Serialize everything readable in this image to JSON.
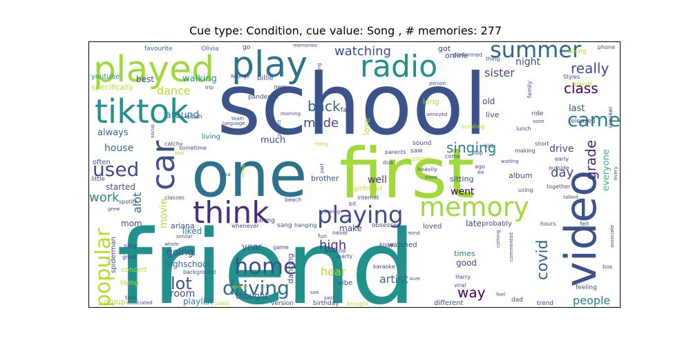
{
  "figure": {
    "title": "Cue type: Condition, cue value: Song , # memories: 277"
  },
  "wordcloud": {
    "palette": [
      "#440154",
      "#482878",
      "#3e4a89",
      "#31688e",
      "#26828e",
      "#1f9e89",
      "#35b779",
      "#6ece58",
      "#b5de2b",
      "#d7e219"
    ],
    "words": [
      {
        "text": "friend",
        "color": "#21918c"
      },
      {
        "text": "school",
        "color": "#3b528b"
      },
      {
        "text": "one",
        "color": "#2c728e"
      },
      {
        "text": "first",
        "color": "#a0da39"
      },
      {
        "text": "video",
        "color": "#3b528b"
      },
      {
        "text": "played",
        "color": "#a0da39"
      },
      {
        "text": "play",
        "color": "#2c728e"
      },
      {
        "text": "tiktok",
        "color": "#21918c"
      },
      {
        "text": "radio",
        "color": "#21918c"
      },
      {
        "text": "think",
        "color": "#472d7b"
      },
      {
        "text": "car",
        "color": "#3b528b"
      },
      {
        "text": "memory",
        "color": "#a0da39"
      },
      {
        "text": "playing",
        "color": "#3e4a89"
      },
      {
        "text": "summer",
        "color": "#31688e"
      },
      {
        "text": "popular",
        "color": "#b5de2b"
      },
      {
        "text": "home",
        "color": "#3b528b"
      },
      {
        "text": "driving",
        "color": "#31688e"
      },
      {
        "text": "came",
        "color": "#26828e"
      },
      {
        "text": "used",
        "color": "#3e4a89"
      },
      {
        "text": "lot",
        "color": "#3b528b"
      },
      {
        "text": "really",
        "color": "#3e4a89"
      },
      {
        "text": "class",
        "color": "#440154"
      },
      {
        "text": "watching",
        "color": "#3e4a89"
      },
      {
        "text": "back",
        "color": "#31688e"
      },
      {
        "text": "made",
        "color": "#3e4a89"
      },
      {
        "text": "singing",
        "color": "#26828e"
      },
      {
        "text": "covid",
        "color": "#31688e"
      },
      {
        "text": "grade",
        "color": "#482878"
      },
      {
        "text": "day",
        "color": "#3e4a89"
      },
      {
        "text": "work",
        "color": "#26828e"
      },
      {
        "text": "way",
        "color": "#440154"
      },
      {
        "text": "high",
        "color": "#472d7b"
      },
      {
        "text": "artist",
        "color": "#31688e"
      },
      {
        "text": "people",
        "color": "#26828e"
      },
      {
        "text": "dance",
        "color": "#b5de2b"
      },
      {
        "text": "house",
        "color": "#31688e"
      },
      {
        "text": "going",
        "color": "#3e4a89"
      },
      {
        "text": "room",
        "color": "#3b528b"
      },
      {
        "text": "alot",
        "color": "#31688e"
      },
      {
        "text": "movie",
        "color": "#b5de2b"
      },
      {
        "text": "hear",
        "color": "#b5de2b"
      },
      {
        "text": "went",
        "color": "#440154"
      },
      {
        "text": "sister",
        "color": "#3e4a89"
      },
      {
        "text": "night",
        "color": "#3e4a89"
      },
      {
        "text": "always",
        "color": "#31688e"
      },
      {
        "text": "around",
        "color": "#26828e"
      },
      {
        "text": "much",
        "color": "#3e4a89"
      },
      {
        "text": "well",
        "color": "#472d7b"
      },
      {
        "text": "drive",
        "color": "#3e4a89"
      },
      {
        "text": "everyone",
        "color": "#35b779"
      },
      {
        "text": "last",
        "color": "#3b528b"
      },
      {
        "text": "year",
        "color": "#3b528b"
      },
      {
        "text": "thought",
        "color": "#3e4a89"
      },
      {
        "text": "playlist",
        "color": "#26828e"
      },
      {
        "text": "highschool",
        "color": "#31688e"
      },
      {
        "text": "make",
        "color": "#3e4a89"
      },
      {
        "text": "good",
        "color": "#3e4a89"
      },
      {
        "text": "old",
        "color": "#3e4a89"
      },
      {
        "text": "best",
        "color": "#3e4a89"
      },
      {
        "text": "walking",
        "color": "#21918c"
      },
      {
        "text": "mom",
        "color": "#3e4a89"
      },
      {
        "text": "liked",
        "color": "#26828e"
      },
      {
        "text": "late",
        "color": "#3e4a89"
      },
      {
        "text": "started",
        "color": "#3e4a89"
      },
      {
        "text": "album",
        "color": "#3e4a89"
      },
      {
        "text": "online",
        "color": "#3e4a89"
      },
      {
        "text": "got",
        "color": "#3e4a89"
      },
      {
        "text": "live",
        "color": "#3e4a89"
      },
      {
        "text": "times",
        "color": "#26828e"
      },
      {
        "text": "ariana",
        "color": "#3e4a89"
      },
      {
        "text": "dancing",
        "color": "#3e4a89"
      },
      {
        "text": "brother",
        "color": "#3e4a89"
      },
      {
        "text": "sitting",
        "color": "#3e4a89"
      },
      {
        "text": "specifically",
        "color": "#b5de2b"
      },
      {
        "text": "favourite",
        "color": "#31688e"
      },
      {
        "text": "youtube",
        "color": "#21918c"
      },
      {
        "text": "Olivia",
        "color": "#31688e"
      },
      {
        "text": "billie",
        "color": "#3e4a89"
      },
      {
        "text": "new",
        "color": "#3e4a89"
      },
      {
        "text": "eilish",
        "color": "#3e4a89"
      },
      {
        "text": "living",
        "color": "#26828e"
      },
      {
        "text": "love",
        "color": "#b5de2b"
      },
      {
        "text": "fan",
        "color": "#3e4a89"
      },
      {
        "text": "long",
        "color": "#b5de2b"
      },
      {
        "text": "released",
        "color": "#3e4a89"
      },
      {
        "text": "spiderman",
        "color": "#3e4a89"
      },
      {
        "text": "group",
        "color": "#b5de2b"
      },
      {
        "text": "liking",
        "color": "#b5de2b"
      },
      {
        "text": "concert",
        "color": "#b5de2b"
      },
      {
        "text": "little",
        "color": "#3e4a89"
      },
      {
        "text": "often",
        "color": "#3e4a89"
      },
      {
        "text": "watched",
        "color": "#3e4a89"
      },
      {
        "text": "obsessed",
        "color": "#3e4a89"
      },
      {
        "text": "loved",
        "color": "#3e4a89"
      },
      {
        "text": "probably",
        "color": "#3e4a89"
      },
      {
        "text": "hours",
        "color": "#3e4a89"
      },
      {
        "text": "together",
        "color": "#3e4a89"
      },
      {
        "text": "feeling",
        "color": "#3e4a89"
      },
      {
        "text": "different",
        "color": "#3e4a89"
      },
      {
        "text": "dad",
        "color": "#3e4a89"
      },
      {
        "text": "trend",
        "color": "#3e4a89"
      },
      {
        "text": "version",
        "color": "#3e4a89"
      },
      {
        "text": "birthday",
        "color": "#3e4a89"
      },
      {
        "text": "sing",
        "color": "#3e4a89"
      },
      {
        "text": "great",
        "color": "#3e4a89"
      },
      {
        "text": "told",
        "color": "#3e4a89"
      },
      {
        "text": "game",
        "color": "#3e4a89"
      },
      {
        "text": "vibe",
        "color": "#3e4a89"
      },
      {
        "text": "Harry",
        "color": "#3e4a89"
      },
      {
        "text": "viral",
        "color": "#3e4a89"
      },
      {
        "text": "party",
        "color": "#3e4a89"
      },
      {
        "text": "weeknd",
        "color": "#3e4a89"
      },
      {
        "text": "karaoke",
        "color": "#3e4a89"
      },
      {
        "text": "know",
        "color": "#3e4a89"
      },
      {
        "text": "fun",
        "color": "#3e4a89"
      },
      {
        "text": "never",
        "color": "#3e4a89"
      },
      {
        "text": "sang",
        "color": "#3e4a89"
      },
      {
        "text": "hanging",
        "color": "#3e4a89"
      },
      {
        "text": "whenever",
        "color": "#3e4a89"
      },
      {
        "text": "beach",
        "color": "#3e4a89"
      },
      {
        "text": "pandemic",
        "color": "#3e4a89"
      },
      {
        "text": "catchy",
        "color": "#3e4a89"
      },
      {
        "text": "sometime",
        "color": "#3e4a89"
      },
      {
        "text": "trip",
        "color": "#3e4a89"
      },
      {
        "text": "Rodrigo",
        "color": "#3e4a89"
      },
      {
        "text": "go",
        "color": "#3e4a89"
      },
      {
        "text": "memories",
        "color": "#3e4a89"
      },
      {
        "text": "performed",
        "color": "#3e4a89"
      },
      {
        "text": "thing",
        "color": "#3e4a89"
      },
      {
        "text": "talking",
        "color": "#b5de2b"
      },
      {
        "text": "phone",
        "color": "#3e4a89"
      },
      {
        "text": "Styles",
        "color": "#3e4a89"
      },
      {
        "text": "grande",
        "color": "#b5de2b"
      },
      {
        "text": "speaker",
        "color": "#3e4a89"
      },
      {
        "text": "family",
        "color": "#3e4a89"
      },
      {
        "text": "ride",
        "color": "#3e4a89"
      },
      {
        "text": "lunch",
        "color": "#3e4a89"
      },
      {
        "text": "soon",
        "color": "#3e4a89"
      },
      {
        "text": "short",
        "color": "#3e4a89"
      },
      {
        "text": "making",
        "color": "#3e4a89"
      },
      {
        "text": "early",
        "color": "#3e4a89"
      },
      {
        "text": "outside",
        "color": "#3e4a89"
      },
      {
        "text": "every",
        "color": "#3e4a89"
      },
      {
        "text": "top",
        "color": "#3e4a89"
      },
      {
        "text": "kid",
        "color": "#3e4a89"
      },
      {
        "text": "waiting",
        "color": "#3e4a89"
      },
      {
        "text": "sound",
        "color": "#3e4a89"
      },
      {
        "text": "saw",
        "color": "#3e4a89"
      },
      {
        "text": "parents",
        "color": "#3e4a89"
      },
      {
        "text": "singer",
        "color": "#b5de2b"
      },
      {
        "text": "dua",
        "color": "#3e4a89"
      },
      {
        "text": "heavily",
        "color": "#3e4a89"
      },
      {
        "text": "show",
        "color": "#3e4a89"
      },
      {
        "text": "girlfriend",
        "color": "#b5de2b"
      },
      {
        "text": "internet",
        "color": "#3e4a89"
      },
      {
        "text": "bit",
        "color": "#3e4a89"
      },
      {
        "text": "seeing",
        "color": "#3e4a89"
      },
      {
        "text": "see",
        "color": "#3e4a89"
      },
      {
        "text": "said",
        "color": "#3e4a89"
      },
      {
        "text": "brought",
        "color": "#b5de2b"
      },
      {
        "text": "called",
        "color": "#b5de2b"
      },
      {
        "text": "spring",
        "color": "#b5de2b"
      },
      {
        "text": "background",
        "color": "#3e4a89"
      },
      {
        "text": "whole",
        "color": "#3e4a89"
      },
      {
        "text": "similar",
        "color": "#3e4a89"
      },
      {
        "text": "classes",
        "color": "#3e4a89"
      },
      {
        "text": "spotify",
        "color": "#3e4a89"
      },
      {
        "text": "grew",
        "color": "#3e4a89"
      },
      {
        "text": "lipa",
        "color": "#3e4a89"
      },
      {
        "text": "enjoy",
        "color": "#b5de2b"
      },
      {
        "text": "bed",
        "color": "#b5de2b"
      },
      {
        "text": "social",
        "color": "#3e4a89"
      },
      {
        "text": "team",
        "color": "#3e4a89"
      },
      {
        "text": "language",
        "color": "#3e4a89"
      },
      {
        "text": "morning",
        "color": "#3e4a89"
      },
      {
        "text": "project",
        "color": "#3e4a89"
      },
      {
        "text": "working",
        "color": "#3e4a89"
      },
      {
        "text": "riding",
        "color": "#b5de2b"
      },
      {
        "text": "part",
        "color": "#3e4a89"
      },
      {
        "text": "person",
        "color": "#3e4a89"
      },
      {
        "text": "annoyed",
        "color": "#3e4a89"
      },
      {
        "text": "scrolling",
        "color": "#b5de2b"
      },
      {
        "text": "ago",
        "color": "#3e4a89"
      },
      {
        "text": "ex",
        "color": "#3e4a89"
      },
      {
        "text": "come",
        "color": "#3e4a89"
      },
      {
        "text": "using",
        "color": "#3e4a89"
      },
      {
        "text": "mind",
        "color": "#3e4a89"
      },
      {
        "text": "coming",
        "color": "#3e4a89"
      },
      {
        "text": "commented",
        "color": "#3e4a89"
      },
      {
        "text": "felt",
        "color": "#3e4a89"
      },
      {
        "text": "talked",
        "color": "#3e4a89"
      },
      {
        "text": "associate",
        "color": "#3e4a89"
      },
      {
        "text": "bus",
        "color": "#3e4a89"
      },
      {
        "text": "associated",
        "color": "#3e4a89"
      },
      {
        "text": "sure",
        "color": "#3e4a89"
      },
      {
        "text": "feel",
        "color": "#3e4a89"
      },
      {
        "text": "along",
        "color": "#3e4a89"
      }
    ]
  }
}
